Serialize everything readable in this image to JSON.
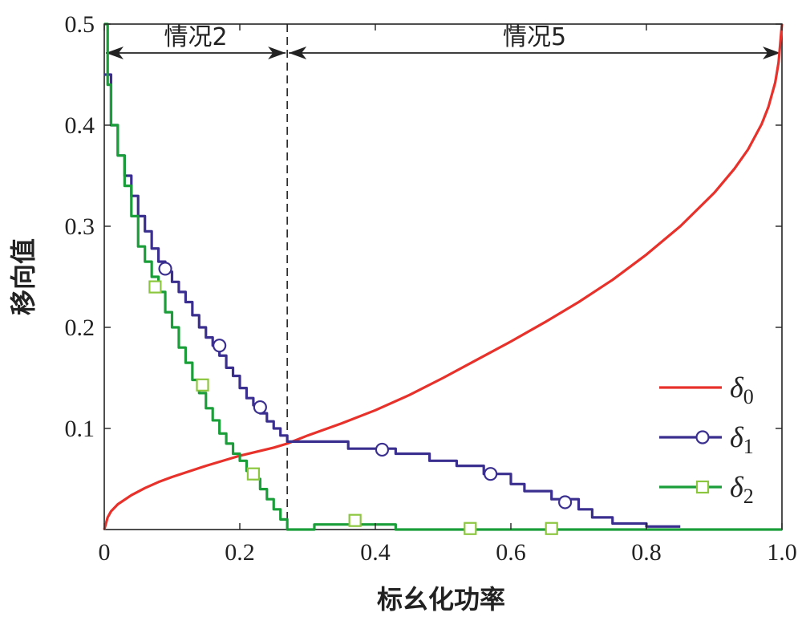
{
  "chart_data": {
    "type": "line",
    "xlabel": "标幺化功率",
    "ylabel": "移向值",
    "xlim": [
      0,
      1.0
    ],
    "ylim": [
      0,
      0.5
    ],
    "x_ticks": [
      "0",
      "0.2",
      "0.4",
      "0.6",
      "0.8",
      "1.0"
    ],
    "y_ticks": [
      "0.1",
      "0.2",
      "0.3",
      "0.4",
      "0.5"
    ],
    "divider_x": 0.27,
    "regions": [
      {
        "label": "情况2",
        "from": 0,
        "to": 0.27
      },
      {
        "label": "情况5",
        "from": 0.27,
        "to": 1.0
      }
    ],
    "legend_position": "right",
    "series": [
      {
        "name": "δ0",
        "legend_base": "δ",
        "legend_sub": "0",
        "color": "#e8312a",
        "marker": "none",
        "x": [
          0,
          0.005,
          0.01,
          0.02,
          0.04,
          0.06,
          0.08,
          0.1,
          0.15,
          0.2,
          0.25,
          0.27,
          0.3,
          0.35,
          0.4,
          0.45,
          0.5,
          0.55,
          0.6,
          0.65,
          0.7,
          0.75,
          0.8,
          0.85,
          0.9,
          0.93,
          0.95,
          0.97,
          0.98,
          0.99,
          0.995,
          1.0
        ],
        "y": [
          0,
          0.012,
          0.018,
          0.025,
          0.034,
          0.041,
          0.047,
          0.052,
          0.063,
          0.073,
          0.081,
          0.085,
          0.093,
          0.105,
          0.118,
          0.133,
          0.15,
          0.168,
          0.186,
          0.205,
          0.225,
          0.247,
          0.272,
          0.3,
          0.333,
          0.357,
          0.376,
          0.401,
          0.418,
          0.442,
          0.462,
          0.5
        ]
      },
      {
        "name": "δ1",
        "legend_base": "δ",
        "legend_sub": "1",
        "color": "#3a2f8f",
        "marker": "circle",
        "step": true,
        "x": [
          0,
          0.01,
          0.02,
          0.03,
          0.04,
          0.05,
          0.06,
          0.07,
          0.08,
          0.09,
          0.1,
          0.11,
          0.12,
          0.13,
          0.14,
          0.15,
          0.16,
          0.17,
          0.18,
          0.19,
          0.2,
          0.21,
          0.22,
          0.23,
          0.24,
          0.25,
          0.26,
          0.27,
          0.3,
          0.35,
          0.36,
          0.4,
          0.43,
          0.48,
          0.52,
          0.56,
          0.6,
          0.62,
          0.66,
          0.7,
          0.72,
          0.75,
          0.8,
          0.85
        ],
        "y": [
          0.45,
          0.4,
          0.37,
          0.35,
          0.33,
          0.31,
          0.295,
          0.278,
          0.265,
          0.255,
          0.245,
          0.235,
          0.225,
          0.212,
          0.2,
          0.19,
          0.182,
          0.172,
          0.16,
          0.152,
          0.14,
          0.13,
          0.123,
          0.115,
          0.107,
          0.1,
          0.093,
          0.087,
          0.087,
          0.087,
          0.08,
          0.08,
          0.075,
          0.068,
          0.063,
          0.055,
          0.045,
          0.038,
          0.03,
          0.02,
          0.012,
          0.006,
          0.003,
          0.003
        ],
        "markers_x": [
          0.09,
          0.17,
          0.23,
          0.41,
          0.57,
          0.68
        ],
        "markers_y": [
          0.258,
          0.182,
          0.121,
          0.079,
          0.055,
          0.027
        ]
      },
      {
        "name": "δ2",
        "legend_base": "δ",
        "legend_sub": "2",
        "color": "#1a9e3a",
        "marker": "square",
        "marker_color": "#8cc63f",
        "step": true,
        "x": [
          0,
          0.005,
          0.01,
          0.02,
          0.03,
          0.04,
          0.05,
          0.06,
          0.07,
          0.08,
          0.09,
          0.1,
          0.11,
          0.12,
          0.13,
          0.14,
          0.15,
          0.16,
          0.17,
          0.18,
          0.19,
          0.2,
          0.21,
          0.22,
          0.23,
          0.24,
          0.25,
          0.26,
          0.27,
          0.31,
          0.43,
          0.43,
          1.0
        ],
        "y": [
          0.5,
          0.44,
          0.4,
          0.37,
          0.34,
          0.31,
          0.28,
          0.265,
          0.25,
          0.235,
          0.215,
          0.2,
          0.18,
          0.165,
          0.148,
          0.135,
          0.12,
          0.108,
          0.095,
          0.085,
          0.075,
          0.068,
          0.058,
          0.05,
          0.04,
          0.03,
          0.02,
          0.01,
          0.0,
          0.005,
          0.005,
          0.0,
          0.0
        ],
        "markers_x": [
          0.075,
          0.145,
          0.22,
          0.37,
          0.54,
          0.66
        ],
        "markers_y": [
          0.24,
          0.143,
          0.055,
          0.009,
          0.001,
          0.001
        ]
      }
    ]
  }
}
